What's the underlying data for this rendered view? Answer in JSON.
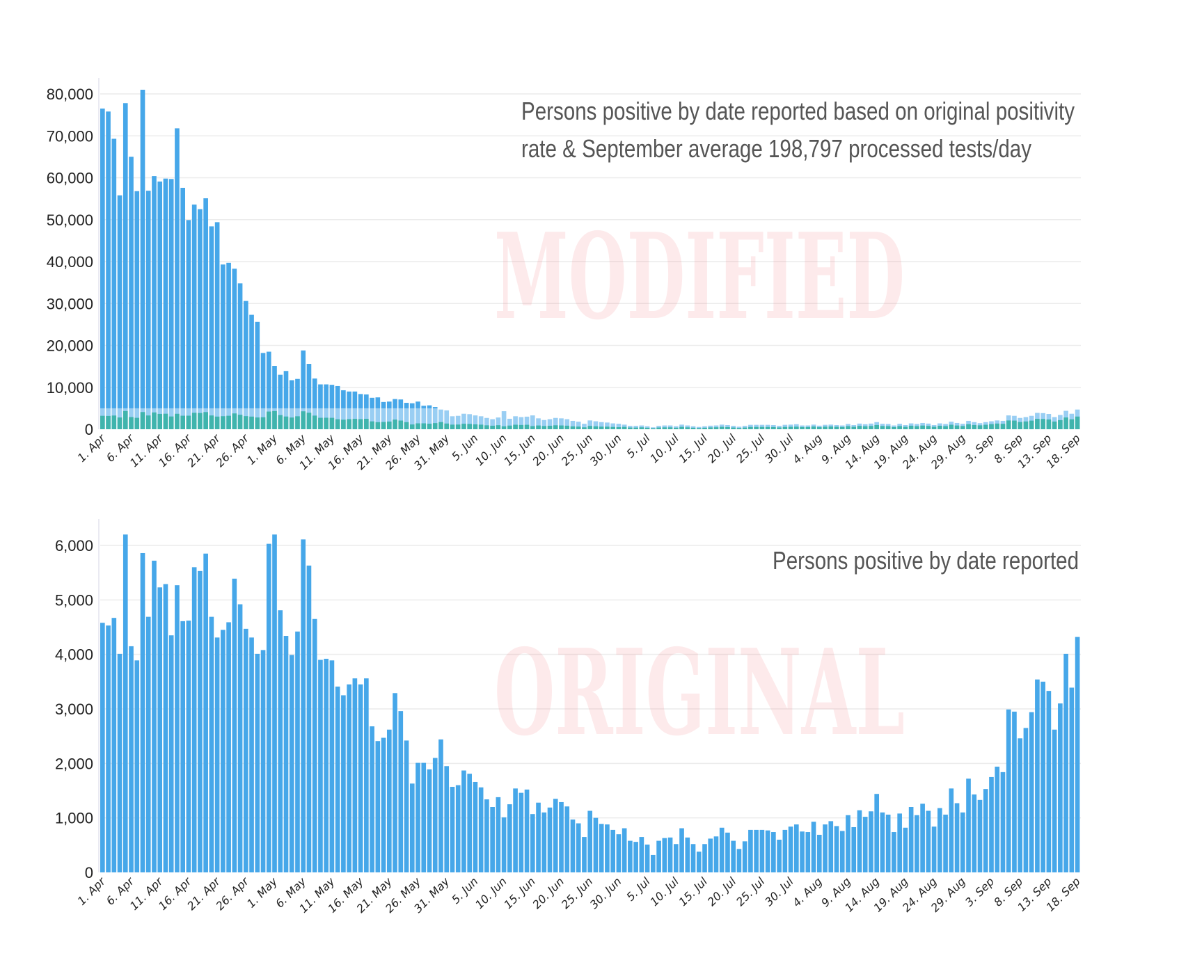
{
  "chart_data": [
    {
      "type": "bar",
      "title_lines": [
        "Persons positive by date reported based on original positivity",
        "rate & September average 198,797 processed tests/day"
      ],
      "watermark": "MODIFIED",
      "xlabel": "",
      "ylabel": "",
      "ylim": [
        0,
        85000
      ],
      "yticks": [
        "0",
        "10,000",
        "20,000",
        "30,000",
        "40,000",
        "50,000",
        "60,000",
        "70,000",
        "80,000"
      ],
      "ytick_values": [
        0,
        10000,
        20000,
        30000,
        40000,
        50000,
        60000,
        70000,
        80000
      ],
      "grid": true,
      "bar_color": "#46a7e9",
      "overlay_color": "#3fb4ad",
      "start_date": "1 Apr",
      "end_date": "18 Sep",
      "values": [
        76500,
        75800,
        69300,
        55800,
        77800,
        65000,
        56800,
        81000,
        56900,
        60400,
        59100,
        59800,
        59700,
        71800,
        57600,
        49900,
        53600,
        52500,
        55100,
        48400,
        49400,
        39300,
        39700,
        38300,
        34800,
        30600,
        27300,
        25600,
        18200,
        18500,
        15100,
        13000,
        13900,
        11700,
        12000,
        18800,
        15600,
        12100,
        10700,
        10700,
        10600,
        10300,
        9300,
        9000,
        9000,
        8400,
        8300,
        7500,
        7600,
        6500,
        6600,
        7200,
        7100,
        6300,
        6200,
        6600,
        5600,
        5700,
        5300,
        4700,
        4500,
        3100,
        3200,
        3700,
        3600,
        3300,
        3100,
        2700,
        2400,
        2800,
        4300,
        2500,
        3100,
        2900,
        3000,
        3300,
        2600,
        2200,
        2400,
        2700,
        2600,
        2400,
        2000,
        1800,
        1300,
        2100,
        1900,
        1700,
        1600,
        1400,
        1300,
        1100,
        800,
        800,
        900,
        700,
        450,
        800,
        900,
        900,
        700,
        1100,
        900,
        700,
        550,
        700,
        850,
        900,
        1100,
        1000,
        800,
        600,
        800,
        1050,
        1050,
        1050,
        1050,
        1000,
        800,
        1050,
        1100,
        1200,
        900,
        900,
        1100,
        850,
        1050,
        1100,
        1000,
        900,
        1250,
        1000,
        1350,
        1200,
        1350,
        1700,
        1300,
        1250,
        900,
        1300,
        1000,
        1400,
        1250,
        1500,
        1350,
        1000,
        1400,
        1250,
        1800,
        1500,
        1300,
        2000,
        1700,
        1450,
        1700,
        1900,
        2100,
        2000,
        3300,
        3200,
        2700,
        2900,
        3200,
        3900,
        3850,
        3650,
        2900,
        3400,
        4400,
        3700,
        4700
      ]
    },
    {
      "type": "bar",
      "title_lines": [
        "Persons positive by date reported"
      ],
      "watermark": "ORIGINAL",
      "xlabel": "",
      "ylabel": "",
      "ylim": [
        0,
        6400
      ],
      "yticks": [
        "0",
        "1,000",
        "2,000",
        "3,000",
        "4,000",
        "5,000",
        "6,000"
      ],
      "ytick_values": [
        0,
        1000,
        2000,
        3000,
        4000,
        5000,
        6000
      ],
      "grid": true,
      "bar_color": "#46a7e9",
      "start_date": "1 Apr",
      "end_date": "18 Sep",
      "values": [
        4580,
        4530,
        4670,
        4010,
        6200,
        4150,
        3890,
        5860,
        4690,
        5720,
        5230,
        5290,
        4350,
        5270,
        4610,
        4620,
        5600,
        5530,
        5850,
        4690,
        4310,
        4450,
        4590,
        5390,
        4920,
        4470,
        4310,
        4010,
        4080,
        6030,
        6200,
        4810,
        4340,
        3990,
        4420,
        6110,
        5630,
        4650,
        3900,
        3920,
        3890,
        3410,
        3250,
        3450,
        3560,
        3450,
        3560,
        2680,
        2410,
        2470,
        2620,
        3290,
        2960,
        2420,
        1630,
        2010,
        2010,
        1890,
        2100,
        2440,
        1950,
        1570,
        1600,
        1870,
        1810,
        1660,
        1560,
        1340,
        1200,
        1380,
        1010,
        1250,
        1540,
        1460,
        1520,
        1070,
        1280,
        1100,
        1190,
        1350,
        1290,
        1210,
        970,
        900,
        650,
        1130,
        1000,
        890,
        880,
        780,
        700,
        810,
        580,
        560,
        650,
        510,
        320,
        580,
        630,
        640,
        520,
        810,
        640,
        520,
        380,
        520,
        620,
        660,
        820,
        730,
        580,
        430,
        570,
        780,
        780,
        780,
        770,
        740,
        600,
        780,
        840,
        880,
        750,
        740,
        930,
        690,
        880,
        940,
        850,
        760,
        1050,
        830,
        1140,
        1020,
        1120,
        1440,
        1100,
        1060,
        740,
        1080,
        820,
        1200,
        1050,
        1260,
        1130,
        840,
        1180,
        1060,
        1540,
        1270,
        1100,
        1720,
        1430,
        1330,
        1530,
        1750,
        1940,
        1840,
        2990,
        2950,
        2460,
        2650,
        2940,
        3540,
        3500,
        3330,
        2620,
        3100,
        4010,
        3390,
        4320
      ]
    }
  ],
  "xticks": [
    "1. Apr",
    "6. Apr",
    "11. Apr",
    "16. Apr",
    "21. Apr",
    "26. Apr",
    "1. May",
    "6. May",
    "11. May",
    "16. May",
    "21. May",
    "26. May",
    "31. May",
    "5. Jun",
    "10. Jun",
    "15. Jun",
    "20. Jun",
    "25. Jun",
    "30. Jun",
    "5. Jul",
    "10. Jul",
    "15. Jul",
    "20. Jul",
    "25. Jul",
    "30. Jul",
    "4. Aug",
    "9. Aug",
    "14. Aug",
    "19. Aug",
    "24. Aug",
    "29. Aug",
    "3. Sep",
    "8. Sep",
    "13. Sep",
    "18. Sep"
  ]
}
